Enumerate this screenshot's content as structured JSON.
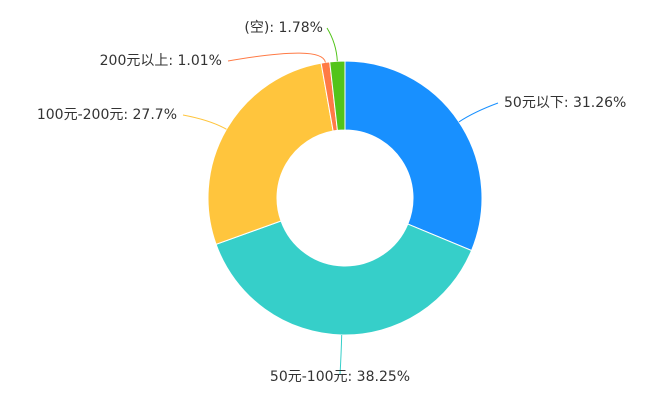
{
  "chart_data": {
    "type": "pie",
    "variant": "donut",
    "title": "",
    "slices": [
      {
        "label": "50元以下",
        "value": 31.26,
        "display": "50元以下: 31.26%",
        "color": "#1890ff"
      },
      {
        "label": "50元-100元",
        "value": 38.25,
        "display": "50元-100元: 38.25%",
        "color": "#36cfc9"
      },
      {
        "label": "100元-200元",
        "value": 27.7,
        "display": "100元-200元: 27.7%",
        "color": "#ffc53d"
      },
      {
        "label": "200元以上",
        "value": 1.01,
        "display": "200元以上: 1.01%",
        "color": "#ff7a45"
      },
      {
        "label": "(空)",
        "value": 1.78,
        "display": "(空): 1.78%",
        "color": "#52c41a"
      }
    ],
    "legend": "none"
  }
}
